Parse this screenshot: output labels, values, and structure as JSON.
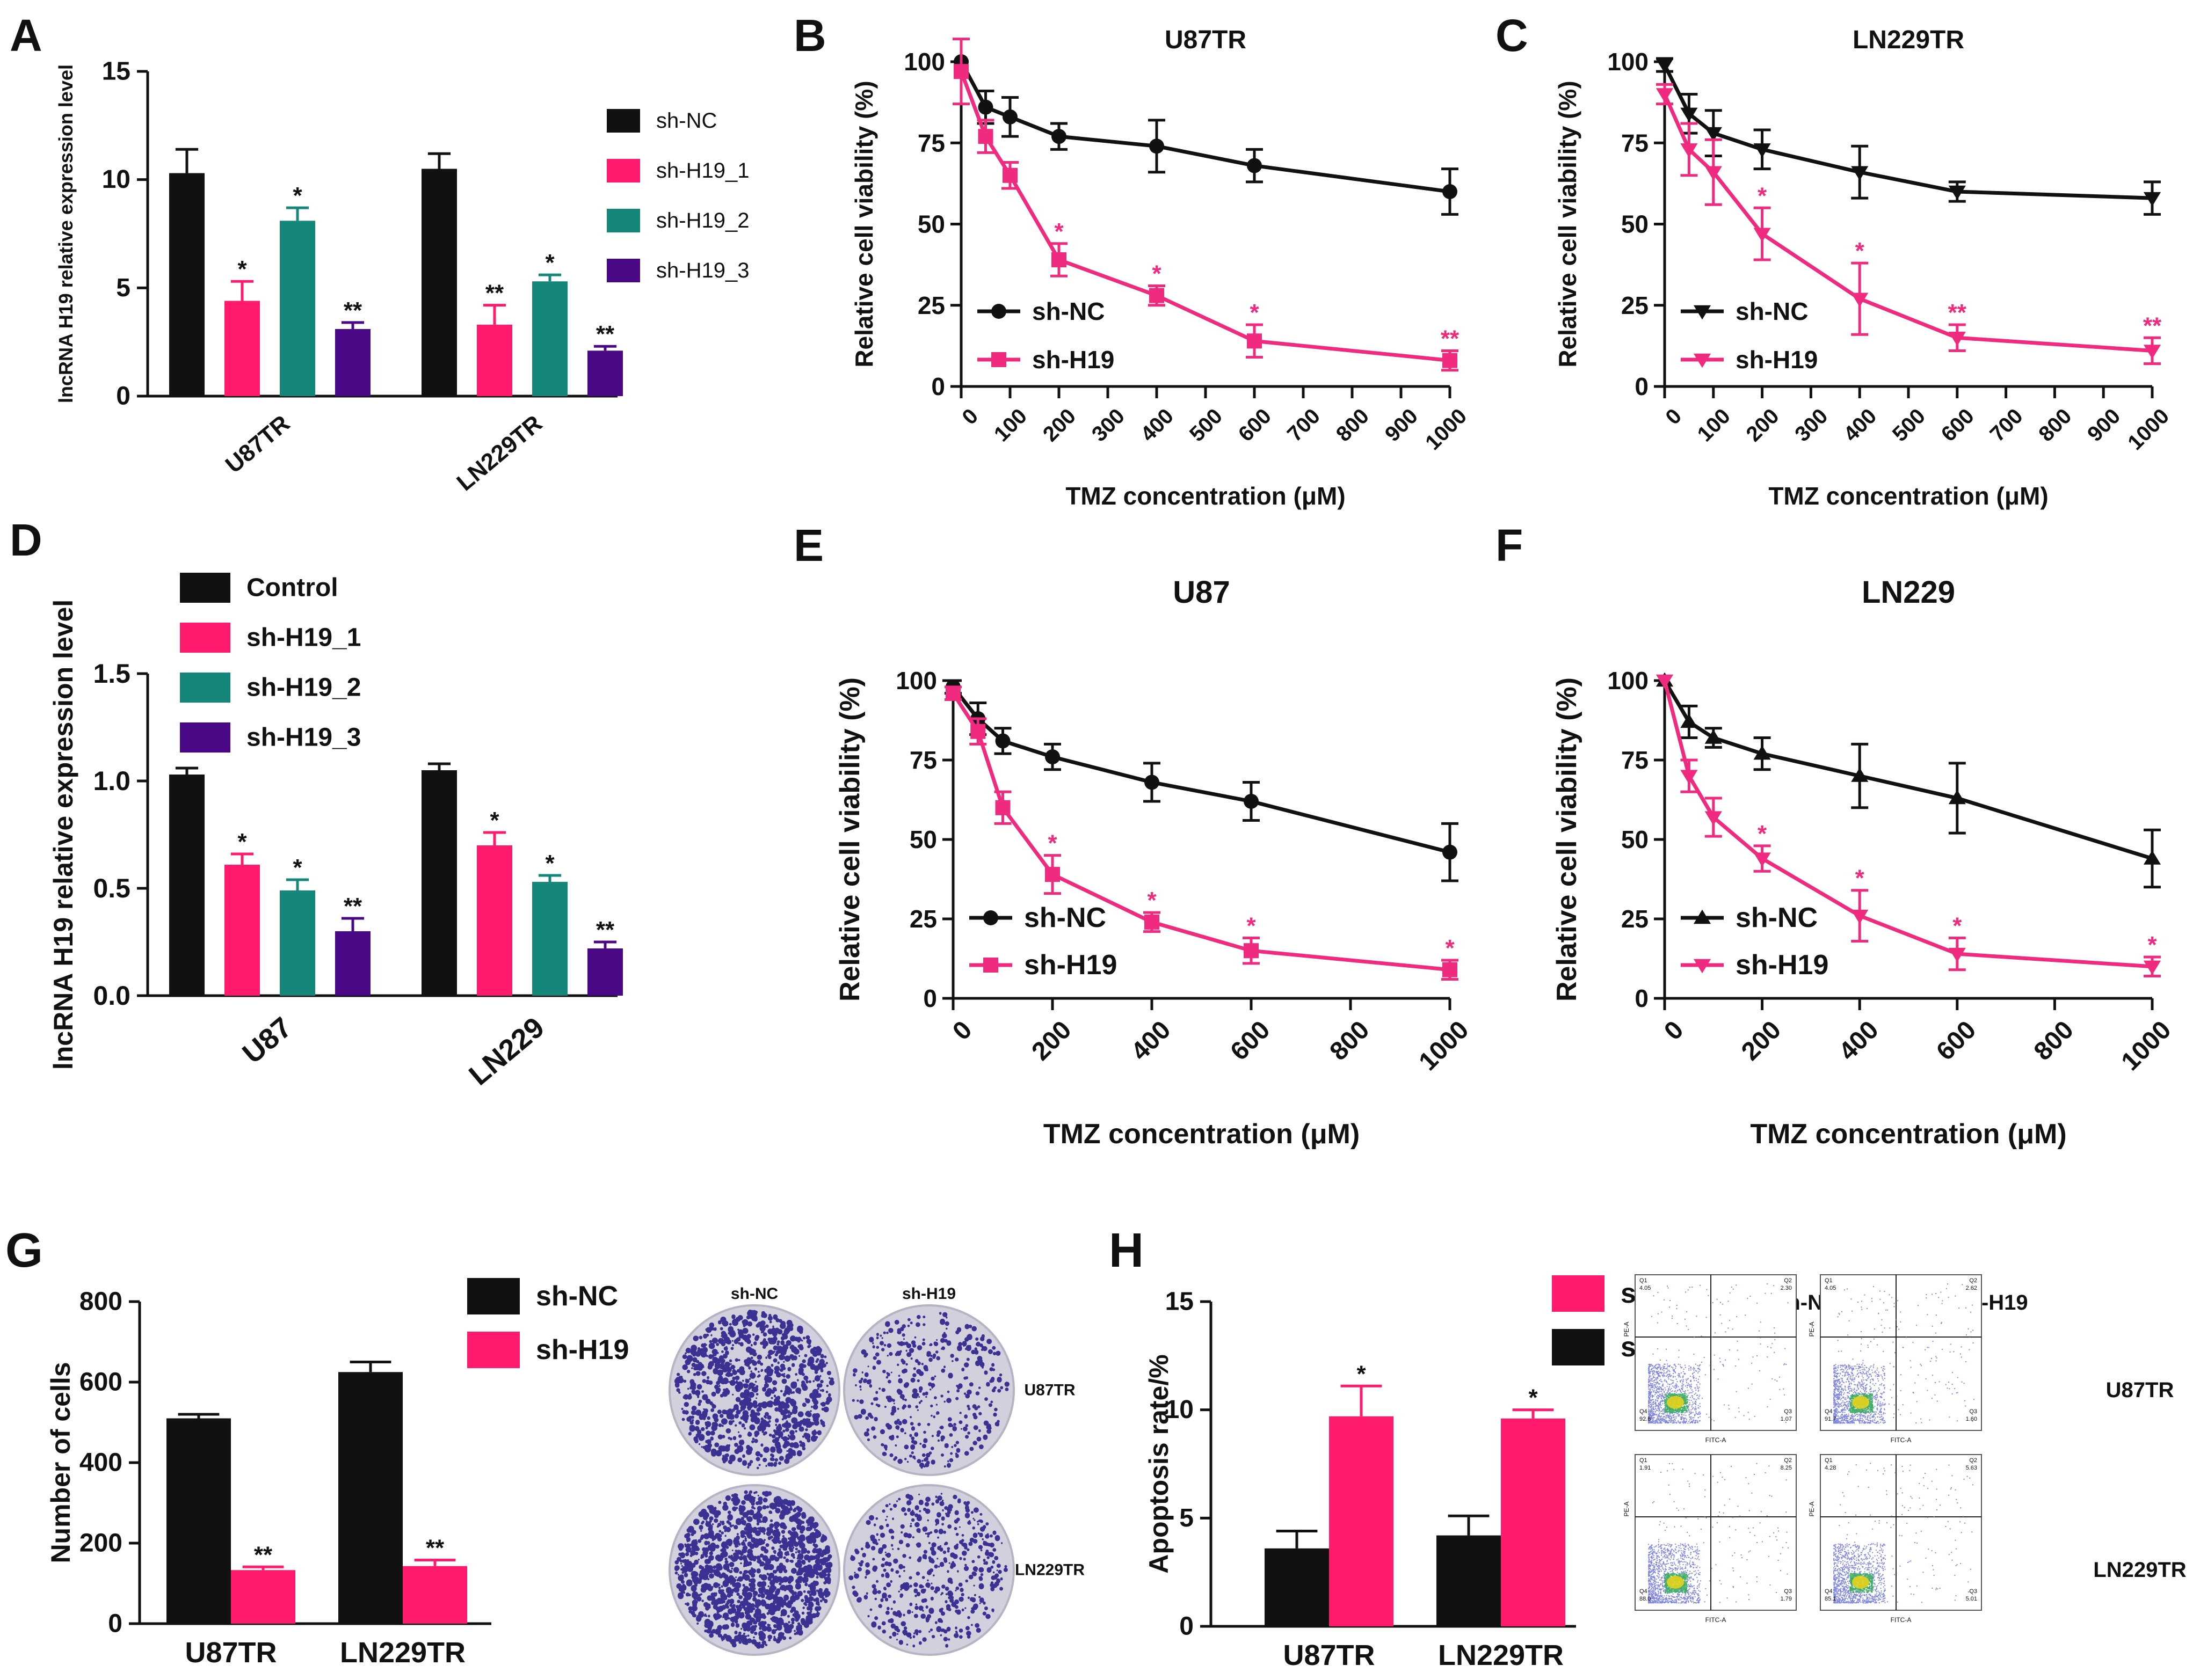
{
  "colors": {
    "black": "#111111",
    "pink": "#ff1a6e",
    "pinkLine": "#ef2a7f",
    "teal": "#14877a",
    "purple": "#4a0886",
    "plateBg": "#d2d0dc",
    "plateDot": "#2a1f8a",
    "flowBg": "#ffffff",
    "flowDot": "#6a72d8"
  },
  "chart_data": [
    {
      "id": "A",
      "type": "bar",
      "panel_label": "A",
      "title": "",
      "xlabel": "",
      "ylabel": "lncRNA H19 relative expression level",
      "ylim": [
        0,
        15
      ],
      "yticks": [
        "0",
        "5",
        "10",
        "15"
      ],
      "categories": [
        "U87TR",
        "LN229TR"
      ],
      "legend_position": "right",
      "series": [
        {
          "name": "sh-NC",
          "color": "black",
          "values": [
            10.3,
            10.5
          ],
          "errors": [
            1.1,
            0.7
          ],
          "marks": [
            "",
            ""
          ]
        },
        {
          "name": "sh-H19_1",
          "color": "pink",
          "values": [
            4.4,
            3.3
          ],
          "errors": [
            0.9,
            0.9
          ],
          "marks": [
            "*",
            "**"
          ]
        },
        {
          "name": "sh-H19_2",
          "color": "teal",
          "values": [
            8.1,
            5.3
          ],
          "errors": [
            0.6,
            0.3
          ],
          "marks": [
            "*",
            "*"
          ]
        },
        {
          "name": "sh-H19_3",
          "color": "purple",
          "values": [
            3.1,
            2.1
          ],
          "errors": [
            0.3,
            0.2
          ],
          "marks": [
            "**",
            "**"
          ]
        }
      ]
    },
    {
      "id": "B",
      "type": "line",
      "panel_label": "B",
      "title": "U87TR",
      "xlabel": "TMZ  concentration (μM)",
      "ylabel": "Relative cell viability (%)",
      "xlim": [
        0,
        1000
      ],
      "ylim": [
        0,
        100
      ],
      "xticks": [
        "0",
        "100",
        "200",
        "300",
        "400",
        "500",
        "600",
        "700",
        "800",
        "900",
        "1000"
      ],
      "yticks": [
        "0",
        "25",
        "50",
        "75",
        "100"
      ],
      "legend_position": "bottom-left",
      "series": [
        {
          "name": "sh-NC",
          "color": "black",
          "marker": "circle",
          "x": [
            0,
            50,
            100,
            200,
            400,
            600,
            1000
          ],
          "y": [
            100,
            86,
            83,
            77,
            74,
            68,
            60
          ],
          "errors": [
            0,
            5,
            6,
            4,
            8,
            5,
            7
          ],
          "marks": [
            "",
            "",
            "",
            "",
            "",
            "",
            ""
          ]
        },
        {
          "name": "sh-H19",
          "color": "pinkLine",
          "marker": "square",
          "x": [
            0,
            50,
            100,
            200,
            400,
            600,
            1000
          ],
          "y": [
            97,
            77,
            65,
            39,
            28,
            14,
            8
          ],
          "errors": [
            10,
            5,
            4,
            5,
            3,
            5,
            3
          ],
          "marks": [
            "",
            "",
            "",
            "*",
            "*",
            "*",
            "**"
          ]
        }
      ]
    },
    {
      "id": "C",
      "type": "line",
      "panel_label": "C",
      "title": "LN229TR",
      "xlabel": "TMZ  concentration (μM)",
      "ylabel": "Relative cell viability (%)",
      "xlim": [
        0,
        1000
      ],
      "ylim": [
        0,
        100
      ],
      "xticks": [
        "0",
        "100",
        "200",
        "300",
        "400",
        "500",
        "600",
        "700",
        "800",
        "900",
        "1000"
      ],
      "yticks": [
        "0",
        "25",
        "50",
        "75",
        "100"
      ],
      "legend_position": "bottom-left",
      "series": [
        {
          "name": "sh-NC",
          "color": "black",
          "marker": "triangle-down",
          "x": [
            0,
            50,
            100,
            200,
            400,
            600,
            1000
          ],
          "y": [
            99,
            84,
            78,
            73,
            66,
            60,
            58
          ],
          "errors": [
            2,
            6,
            7,
            6,
            8,
            3,
            5
          ],
          "marks": [
            "",
            "",
            "",
            "",
            "",
            "",
            ""
          ]
        },
        {
          "name": "sh-H19",
          "color": "pinkLine",
          "marker": "triangle-down",
          "x": [
            0,
            50,
            100,
            200,
            400,
            600,
            1000
          ],
          "y": [
            90,
            73,
            66,
            47,
            27,
            15,
            11
          ],
          "errors": [
            3,
            8,
            10,
            8,
            11,
            4,
            4
          ],
          "marks": [
            "",
            "",
            "",
            "*",
            "*",
            "**",
            "**"
          ]
        }
      ]
    },
    {
      "id": "D",
      "type": "bar",
      "panel_label": "D",
      "title": "",
      "xlabel": "",
      "ylabel": "lncRNA H19 relative expression level",
      "ylim": [
        0,
        1.5
      ],
      "yticks": [
        "0.0",
        "0.5",
        "1.0",
        "1.5"
      ],
      "categories": [
        "U87",
        "LN229"
      ],
      "legend_position": "top-left",
      "series": [
        {
          "name": "Control",
          "color": "black",
          "values": [
            1.03,
            1.05
          ],
          "errors": [
            0.03,
            0.03
          ],
          "marks": [
            "",
            ""
          ]
        },
        {
          "name": "sh-H19_1",
          "color": "pink",
          "values": [
            0.61,
            0.7
          ],
          "errors": [
            0.05,
            0.06
          ],
          "marks": [
            "*",
            "*"
          ]
        },
        {
          "name": "sh-H19_2",
          "color": "teal",
          "values": [
            0.49,
            0.53
          ],
          "errors": [
            0.05,
            0.03
          ],
          "marks": [
            "*",
            "*"
          ]
        },
        {
          "name": "sh-H19_3",
          "color": "purple",
          "values": [
            0.3,
            0.22
          ],
          "errors": [
            0.06,
            0.03
          ],
          "marks": [
            "**",
            "**"
          ]
        }
      ]
    },
    {
      "id": "E",
      "type": "line",
      "panel_label": "E",
      "title": "U87",
      "xlabel": "TMZ  concentration (μM)",
      "ylabel": "Relative cell viability (%)",
      "xlim": [
        0,
        1000
      ],
      "ylim": [
        0,
        100
      ],
      "xticks": [
        "0",
        "200",
        "400",
        "600",
        "800",
        "1000"
      ],
      "yticks": [
        "0",
        "25",
        "50",
        "75",
        "100"
      ],
      "legend_position": "bottom-left",
      "series": [
        {
          "name": "sh-NC",
          "color": "black",
          "marker": "circle",
          "x": [
            0,
            50,
            100,
            200,
            400,
            600,
            1000
          ],
          "y": [
            98,
            88,
            81,
            76,
            68,
            62,
            46
          ],
          "errors": [
            2,
            5,
            4,
            4,
            6,
            6,
            9
          ],
          "marks": [
            "",
            "",
            "",
            "",
            "",
            "",
            ""
          ]
        },
        {
          "name": "sh-H19",
          "color": "pinkLine",
          "marker": "square",
          "x": [
            0,
            50,
            100,
            200,
            400,
            600,
            1000
          ],
          "y": [
            96,
            84,
            60,
            39,
            24,
            15,
            9
          ],
          "errors": [
            2,
            4,
            5,
            6,
            3,
            4,
            3
          ],
          "marks": [
            "",
            "",
            "",
            "*",
            "*",
            "*",
            "*"
          ]
        }
      ]
    },
    {
      "id": "F",
      "type": "line",
      "panel_label": "F",
      "title": "LN229",
      "xlabel": "TMZ  concentration (μM)",
      "ylabel": "Relative cell viability (%)",
      "xlim": [
        0,
        1000
      ],
      "ylim": [
        0,
        100
      ],
      "xticks": [
        "0",
        "200",
        "400",
        "600",
        "800",
        "1000"
      ],
      "yticks": [
        "0",
        "25",
        "50",
        "75",
        "100"
      ],
      "legend_position": "bottom-left",
      "series": [
        {
          "name": "sh-NC",
          "color": "black",
          "marker": "triangle-up",
          "x": [
            0,
            50,
            100,
            200,
            400,
            600,
            1000
          ],
          "y": [
            100,
            87,
            82,
            77,
            70,
            63,
            44
          ],
          "errors": [
            0,
            5,
            3,
            5,
            10,
            11,
            9
          ],
          "marks": [
            "",
            "",
            "",
            "",
            "",
            "",
            ""
          ]
        },
        {
          "name": "sh-H19",
          "color": "pinkLine",
          "marker": "triangle-down",
          "x": [
            0,
            50,
            100,
            200,
            400,
            600,
            1000
          ],
          "y": [
            100,
            70,
            57,
            44,
            26,
            14,
            10
          ],
          "errors": [
            0,
            5,
            6,
            4,
            8,
            5,
            3
          ],
          "marks": [
            "",
            "",
            "",
            "*",
            "*",
            "*",
            "*"
          ]
        }
      ]
    },
    {
      "id": "G",
      "type": "bar",
      "panel_label": "G",
      "title": "",
      "xlabel": "",
      "ylabel": "Number of cells",
      "ylim": [
        0,
        800
      ],
      "yticks": [
        "0",
        "200",
        "400",
        "600",
        "800"
      ],
      "categories": [
        "U87TR",
        "LN229TR"
      ],
      "legend_position": "top-right",
      "series": [
        {
          "name": "sh-NC",
          "color": "black",
          "values": [
            510,
            625
          ],
          "errors": [
            10,
            25
          ],
          "marks": [
            "",
            ""
          ]
        },
        {
          "name": "sh-H19",
          "color": "pink",
          "values": [
            133,
            143
          ],
          "errors": [
            8,
            15
          ],
          "marks": [
            "**",
            "**"
          ]
        }
      ]
    },
    {
      "id": "H",
      "type": "bar",
      "panel_label": "H",
      "title": "",
      "xlabel": "",
      "ylabel": "Apoptosis rate/%",
      "ylim": [
        0,
        15
      ],
      "yticks": [
        "0",
        "5",
        "10",
        "15"
      ],
      "categories": [
        "U87TR",
        "LN229TR"
      ],
      "legend_position": "top-right",
      "legend_order": [
        "sh-H19",
        "sh-NC"
      ],
      "series": [
        {
          "name": "sh-NC",
          "color": "black",
          "values": [
            3.6,
            4.2
          ],
          "errors": [
            0.8,
            0.9
          ],
          "marks": [
            "",
            ""
          ]
        },
        {
          "name": "sh-H19",
          "color": "pink",
          "values": [
            9.7,
            9.6
          ],
          "errors": [
            1.4,
            0.4
          ],
          "marks": [
            "*",
            "*"
          ]
        }
      ]
    }
  ],
  "colony": {
    "col_labels": [
      "sh-NC",
      "sh-H19"
    ],
    "row_labels": [
      "U87TR",
      "LN229TR"
    ]
  },
  "flow": {
    "col_labels": [
      "sh-NC",
      "sh-H19"
    ],
    "row_labels": [
      "U87TR",
      "LN229TR"
    ],
    "axis_x": "FITC-A",
    "axis_y": "PE-A",
    "quadrants": [
      {
        "q1": "Q1",
        "q2": "Q2",
        "q3": "Q3",
        "q4": "Q4",
        "v1": "4.05",
        "v2": "2.30",
        "v3": "1.07",
        "v4": "92.6"
      },
      {
        "q1": "Q1",
        "q2": "Q2",
        "q3": "Q3",
        "q4": "Q4",
        "v1": "4.05",
        "v2": "2.62",
        "v3": "1.60",
        "v4": "91.7"
      },
      {
        "q1": "Q1",
        "q2": "Q2",
        "q3": "Q3",
        "q4": "Q4",
        "v1": "1.91",
        "v2": "8.25",
        "v3": "1.79",
        "v4": "88.0"
      },
      {
        "q1": "Q1",
        "q2": "Q2",
        "q3": "Q3",
        "q4": "Q4",
        "v1": "4.28",
        "v2": "5.63",
        "v3": "5.01",
        "v4": "85.1"
      }
    ]
  }
}
